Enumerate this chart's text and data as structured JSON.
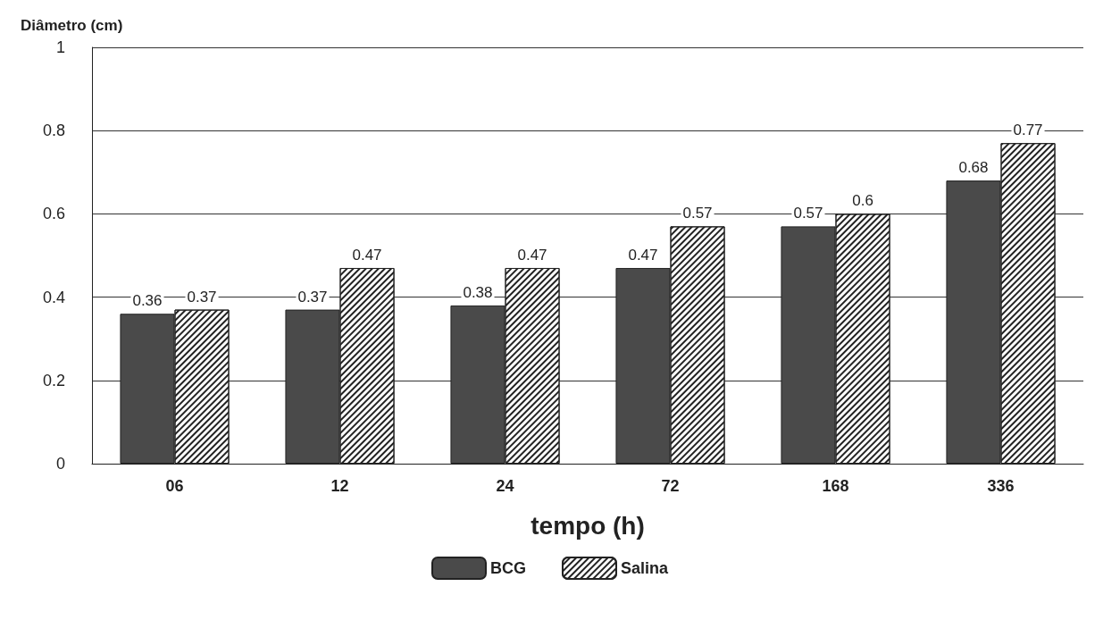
{
  "chart_data": {
    "type": "bar",
    "xlabel": "tempo (h)",
    "ylabel": "Diâmetro (cm)",
    "categories": [
      "06",
      "12",
      "24",
      "72",
      "168",
      "336"
    ],
    "series": [
      {
        "name": "BCG",
        "color": "#4a4a4a",
        "values": [
          0.36,
          0.37,
          0.38,
          0.47,
          0.57,
          0.68
        ]
      },
      {
        "name": "Salina",
        "color": "#ffffff",
        "values": [
          0.37,
          0.47,
          0.47,
          0.57,
          0.6,
          0.77
        ]
      }
    ],
    "ylim": [
      0,
      1
    ],
    "yticks": [
      0,
      0.2,
      0.4,
      0.6,
      0.8,
      1
    ],
    "grid": "y",
    "legend": "bottom",
    "data_labels": true
  }
}
